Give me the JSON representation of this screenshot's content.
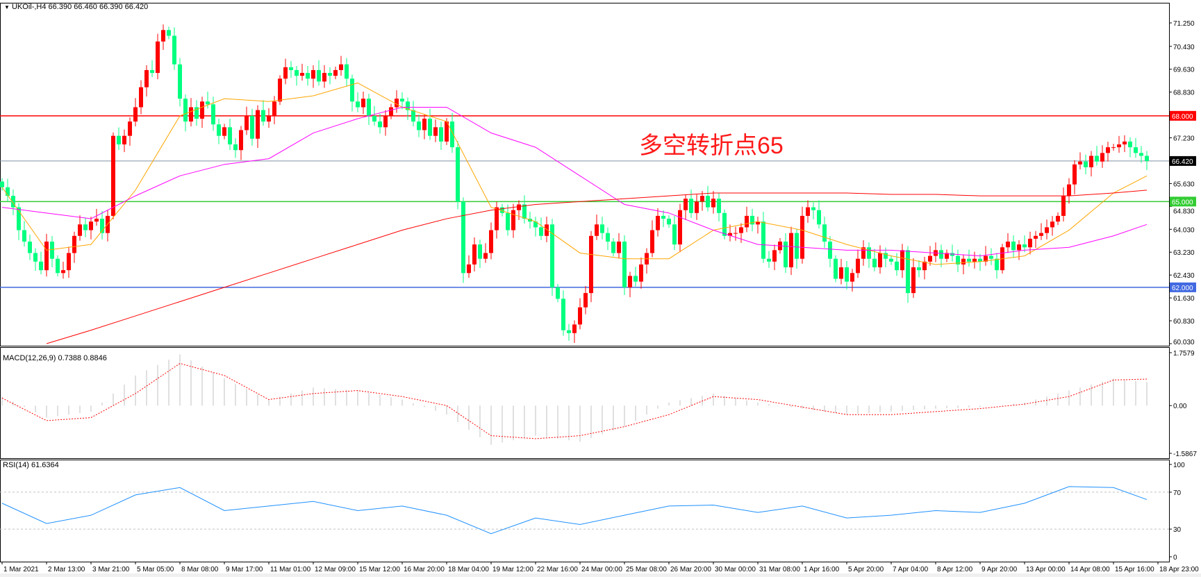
{
  "header": {
    "symbol_info": "UKOil-,H4  66.390 66.460 66.390 66.420",
    "menu_icon": "triangle-down-icon"
  },
  "annotation": {
    "text": "多空转折点65",
    "color": "#ff1a1a"
  },
  "colors": {
    "bull": "#ff0000",
    "bear": "#00ff7f",
    "ma_fast": "#ffa500",
    "ma_mid": "#ff00ff",
    "ma_slow": "#ff0000",
    "macd_hist": "#c0c0c0",
    "macd_signal": "#ff0000",
    "rsi": "#1e90ff"
  },
  "chart_data": [
    {
      "type": "candlestick",
      "title": "UKOil-,H4",
      "ylim": [
        60.03,
        71.25
      ],
      "y_ticks": [
        "71.250",
        "70.430",
        "69.630",
        "68.830",
        "67.230",
        "65.630",
        "64.830",
        "64.030",
        "63.230",
        "62.430",
        "61.630",
        "60.830",
        "60.030"
      ],
      "y_tick_values": [
        71.25,
        70.43,
        69.63,
        68.83,
        67.23,
        65.63,
        64.83,
        64.03,
        63.23,
        62.43,
        61.63,
        60.83,
        60.03
      ],
      "x_labels": [
        "1 Mar 2021",
        "2 Mar 13:00",
        "3 Mar 21:00",
        "5 Mar 05:00",
        "8 Mar 08:00",
        "9 Mar 17:00",
        "11 Mar 01:00",
        "12 Mar 09:00",
        "15 Mar 12:00",
        "16 Mar 20:00",
        "18 Mar 04:00",
        "19 Mar 12:00",
        "22 Mar 16:00",
        "24 Mar 00:00",
        "25 Mar 08:00",
        "26 Mar 20:00",
        "30 Mar 00:00",
        "31 Mar 08:00",
        "1 Apr 16:00",
        "5 Apr 20:00",
        "7 Apr 04:00",
        "8 Apr 12:00",
        "9 Apr 20:00",
        "13 Apr 00:00",
        "14 Apr 08:00",
        "15 Apr 16:00",
        "18 Apr 23:00"
      ],
      "bars_per_label": 8,
      "open_first": 65.7,
      "close": [
        65.5,
        65.2,
        64.8,
        64.0,
        63.6,
        63.2,
        62.9,
        62.6,
        63.6,
        63.0,
        62.5,
        62.6,
        63.2,
        63.8,
        64.2,
        64.0,
        64.3,
        64.4,
        63.9,
        64.5,
        67.3,
        67.0,
        67.3,
        67.8,
        68.3,
        69.0,
        69.6,
        69.5,
        70.6,
        71.0,
        70.8,
        69.8,
        68.6,
        67.8,
        68.3,
        67.9,
        68.5,
        68.4,
        67.7,
        67.3,
        67.6,
        67.0,
        66.8,
        67.5,
        68.0,
        67.2,
        68.2,
        67.8,
        68.0,
        68.5,
        69.3,
        69.7,
        69.6,
        69.4,
        69.5,
        69.3,
        69.6,
        69.2,
        69.5,
        69.4,
        69.6,
        69.8,
        69.3,
        68.5,
        68.3,
        68.6,
        68.0,
        67.8,
        67.6,
        68.0,
        68.3,
        68.6,
        68.5,
        68.2,
        67.8,
        67.5,
        67.9,
        67.3,
        67.6,
        67.1,
        67.8,
        66.9,
        65.0,
        62.5,
        62.8,
        63.5,
        63.0,
        63.2,
        64.0,
        64.8,
        64.6,
        64.0,
        64.7,
        64.9,
        64.4,
        64.3,
        64.1,
        63.8,
        64.2,
        62.0,
        61.6,
        60.5,
        60.4,
        60.7,
        61.3,
        61.8,
        63.8,
        64.2,
        63.9,
        63.6,
        63.2,
        63.6,
        62.0,
        62.4,
        62.2,
        62.8,
        63.2,
        64.0,
        64.5,
        64.4,
        64.2,
        63.5,
        64.7,
        65.1,
        64.6,
        65.0,
        65.2,
        64.8,
        65.1,
        64.6,
        63.8,
        63.9,
        63.9,
        64.1,
        64.5,
        64.2,
        64.3,
        63.0,
        62.9,
        63.3,
        63.6,
        62.7,
        63.9,
        63.0,
        64.5,
        64.8,
        64.7,
        64.2,
        63.6,
        63.0,
        62.3,
        62.7,
        62.2,
        62.5,
        63.0,
        63.4,
        63.0,
        62.7,
        63.2,
        63.0,
        62.9,
        62.6,
        63.3,
        61.8,
        62.7,
        62.6,
        62.9,
        63.1,
        63.3,
        63.0,
        63.2,
        63.1,
        62.8,
        63.0,
        62.9,
        63.0,
        62.9,
        63.1,
        63.0,
        62.6,
        63.4,
        63.6,
        63.3,
        63.5,
        63.4,
        63.7,
        63.8,
        63.9,
        64.1,
        64.3,
        64.5,
        65.2,
        65.6,
        66.3,
        66.4,
        66.2,
        66.6,
        66.4,
        66.7,
        66.9,
        66.9,
        67.0,
        67.1,
        66.9,
        66.7,
        66.6,
        66.42
      ],
      "moving_averages": [
        {
          "color_key": "ma_fast",
          "values": [
            65.5,
            63.3,
            63.5,
            65.4,
            68.0,
            68.6,
            68.5,
            68.7,
            69.15,
            68.3,
            67.8,
            64.8,
            64.3,
            63.2,
            63.0,
            63.0,
            64.0,
            64.3,
            64.0,
            63.5,
            63.1,
            62.8,
            62.9,
            63.1,
            64.0,
            65.3,
            65.9
          ]
        },
        {
          "color_key": "ma_mid",
          "values": [
            64.8,
            64.6,
            64.4,
            65.2,
            65.9,
            66.3,
            66.5,
            67.4,
            67.9,
            68.3,
            68.3,
            67.4,
            66.9,
            65.9,
            64.9,
            64.6,
            64.0,
            63.5,
            63.4,
            63.3,
            63.3,
            63.2,
            63.1,
            63.3,
            63.4,
            63.8,
            64.2
          ]
        },
        {
          "color_key": "ma_slow",
          "values": [
            null,
            60.03,
            60.5,
            61.0,
            61.5,
            62.0,
            62.5,
            63.0,
            63.5,
            64.0,
            64.4,
            64.7,
            64.9,
            65.0,
            65.1,
            65.2,
            65.3,
            65.3,
            65.3,
            65.3,
            65.25,
            65.25,
            65.2,
            65.2,
            65.2,
            65.3,
            65.4
          ]
        }
      ],
      "horizontal_lines": [
        {
          "value": 68.0,
          "label": "68.000",
          "color": "#ff0000"
        },
        {
          "value": 66.42,
          "label": "66.420",
          "color": "#000000",
          "line_color": "#8090a0"
        },
        {
          "value": 65.0,
          "label": "65.000",
          "color": "#33cc33"
        },
        {
          "value": 62.0,
          "label": "62.000",
          "color": "#4169e1"
        }
      ]
    },
    {
      "type": "macd",
      "label": "MACD(12,26,9) 0.7388 0.8846",
      "ylim": [
        -1.5867,
        1.7579
      ],
      "y_ticks": [
        "1.7579",
        "0.00",
        "-1.5867"
      ],
      "y_tick_values": [
        1.7579,
        0,
        -1.5867
      ],
      "histogram": [
        0.3,
        -0.4,
        -0.2,
        1.0,
        1.7,
        0.9,
        0.2,
        0.6,
        0.5,
        0.2,
        -0.3,
        -1.3,
        -1.0,
        -1.2,
        -0.7,
        0.1,
        0.4,
        0.1,
        -0.1,
        -0.3,
        -0.2,
        -0.1,
        -0.05,
        0.1,
        0.5,
        0.9,
        0.74
      ],
      "signal": [
        0.25,
        -0.5,
        -0.4,
        0.4,
        1.4,
        1.0,
        0.2,
        0.4,
        0.5,
        0.3,
        0.0,
        -1.0,
        -1.1,
        -1.0,
        -0.7,
        -0.3,
        0.3,
        0.2,
        -0.05,
        -0.3,
        -0.3,
        -0.2,
        -0.1,
        0.05,
        0.3,
        0.85,
        0.88
      ]
    },
    {
      "type": "line",
      "label": "RSI(14) 61.6364",
      "ylim": [
        0,
        100
      ],
      "y_ticks": [
        "100",
        "70",
        "30",
        "0"
      ],
      "y_tick_values": [
        100,
        70,
        30,
        0
      ],
      "levels": [
        70,
        30
      ],
      "values": [
        58,
        36,
        45,
        67,
        75,
        50,
        55,
        60,
        50,
        55,
        45,
        25,
        42,
        35,
        45,
        55,
        56,
        48,
        55,
        42,
        45,
        50,
        48,
        58,
        76,
        75,
        62
      ]
    }
  ]
}
